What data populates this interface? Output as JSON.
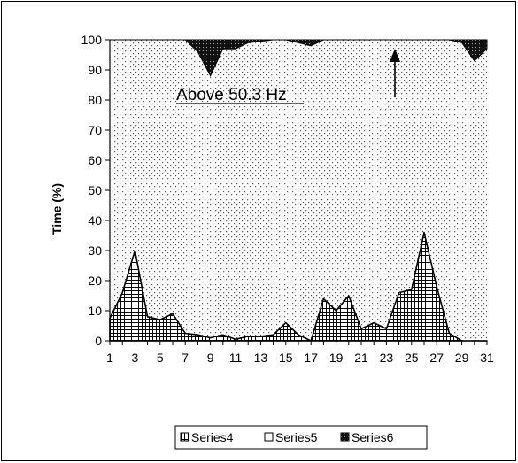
{
  "chart_data": {
    "type": "area",
    "title": "",
    "xlabel": "",
    "ylabel": "Time (%)",
    "ylim": [
      0,
      100
    ],
    "xlim": [
      1,
      31
    ],
    "x_tick_labels": [
      "1",
      "3",
      "5",
      "7",
      "9",
      "11",
      "13",
      "15",
      "17",
      "19",
      "21",
      "23",
      "25",
      "27",
      "29",
      "31"
    ],
    "y_tick_labels": [
      "0",
      "10",
      "20",
      "30",
      "40",
      "50",
      "60",
      "70",
      "80",
      "90",
      "100"
    ],
    "annotation": "Above 50.3 Hz",
    "legend_position": "bottom",
    "series": [
      {
        "name": "Series4",
        "style": "grid-hatch",
        "x": [
          1,
          2,
          3,
          4,
          5,
          6,
          7,
          8,
          9,
          10,
          11,
          12,
          13,
          14,
          15,
          16,
          17,
          18,
          19,
          20,
          21,
          22,
          23,
          24,
          25,
          26,
          27,
          28,
          29,
          30,
          31
        ],
        "values": [
          7.5,
          16,
          30,
          8,
          7,
          9,
          2.5,
          2,
          1,
          2,
          0.5,
          1.5,
          1.5,
          2,
          6,
          2,
          0,
          14,
          10,
          15,
          4,
          6,
          4,
          16,
          17,
          36,
          18,
          2.5,
          0,
          0,
          0
        ]
      },
      {
        "name": "Series5",
        "style": "dotted",
        "x": [
          1,
          2,
          3,
          4,
          5,
          6,
          7,
          8,
          9,
          10,
          11,
          12,
          13,
          14,
          15,
          16,
          17,
          18,
          19,
          20,
          21,
          22,
          23,
          24,
          25,
          26,
          27,
          28,
          29,
          30,
          31
        ],
        "values": [
          0,
          0,
          0,
          0,
          0,
          0,
          0,
          0,
          0,
          0,
          0,
          0,
          0,
          0,
          0,
          0,
          0,
          0,
          0,
          0,
          0,
          0,
          0,
          0,
          0,
          0,
          0,
          0,
          0,
          0,
          0
        ]
      },
      {
        "name": "Series6",
        "style": "dark-dotted",
        "x": [
          1,
          2,
          3,
          4,
          5,
          6,
          7,
          8,
          9,
          10,
          11,
          12,
          13,
          14,
          15,
          16,
          17,
          18,
          19,
          20,
          21,
          22,
          23,
          24,
          25,
          26,
          27,
          28,
          29,
          30,
          31
        ],
        "values": [
          0,
          0,
          0,
          0,
          0,
          0,
          0,
          4,
          12,
          3,
          3,
          1,
          0.5,
          0,
          0,
          1,
          2,
          0,
          0,
          0,
          0,
          0,
          0,
          0,
          0,
          0,
          0,
          0,
          1,
          7,
          3
        ]
      }
    ]
  }
}
